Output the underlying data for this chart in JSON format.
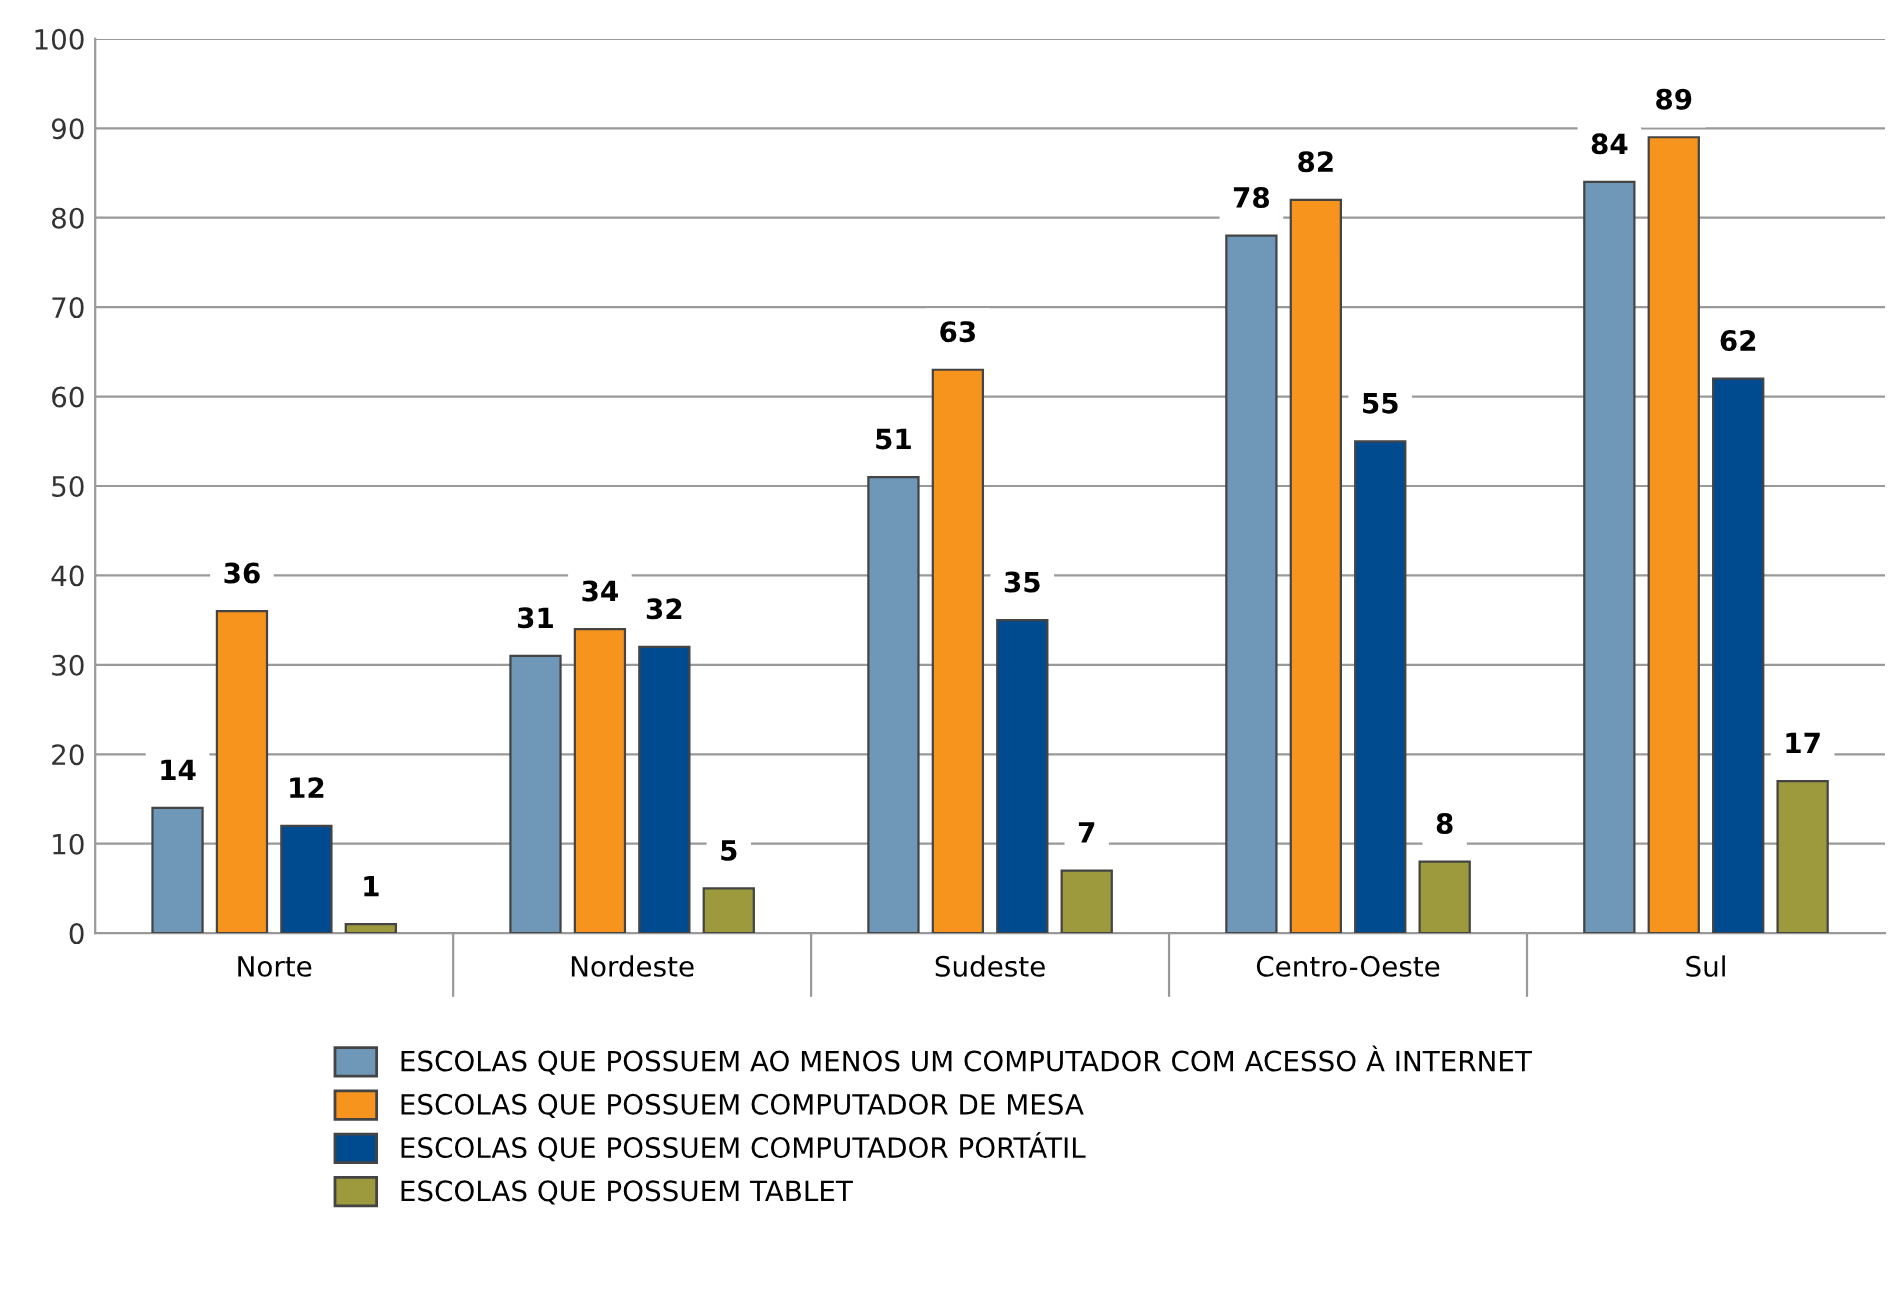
{
  "chart_data": {
    "type": "bar",
    "categories": [
      "Norte",
      "Nordeste",
      "Sudeste",
      "Centro-Oeste",
      "Sul"
    ],
    "series": [
      {
        "name": "ESCOLAS QUE POSSUEM AO MENOS UM COMPUTADOR COM ACESSO À INTERNET",
        "color": "#6f97b8",
        "values": [
          14,
          31,
          51,
          78,
          84
        ]
      },
      {
        "name": "ESCOLAS QUE POSSUEM COMPUTADOR DE MESA",
        "color": "#f7941d",
        "values": [
          36,
          34,
          63,
          82,
          89
        ]
      },
      {
        "name": "ESCOLAS QUE POSSUEM COMPUTADOR PORTÁTIL",
        "color": "#004a8f",
        "values": [
          12,
          32,
          35,
          55,
          62
        ]
      },
      {
        "name": "ESCOLAS QUE POSSUEM TABLET",
        "color": "#9c9a3c",
        "values": [
          1,
          5,
          7,
          8,
          17
        ]
      }
    ],
    "ylim": [
      0,
      100
    ],
    "yticks": [
      0,
      10,
      20,
      30,
      40,
      50,
      60,
      70,
      80,
      90,
      100
    ],
    "grid": "y",
    "legend": "bottom",
    "data_labels": true
  }
}
